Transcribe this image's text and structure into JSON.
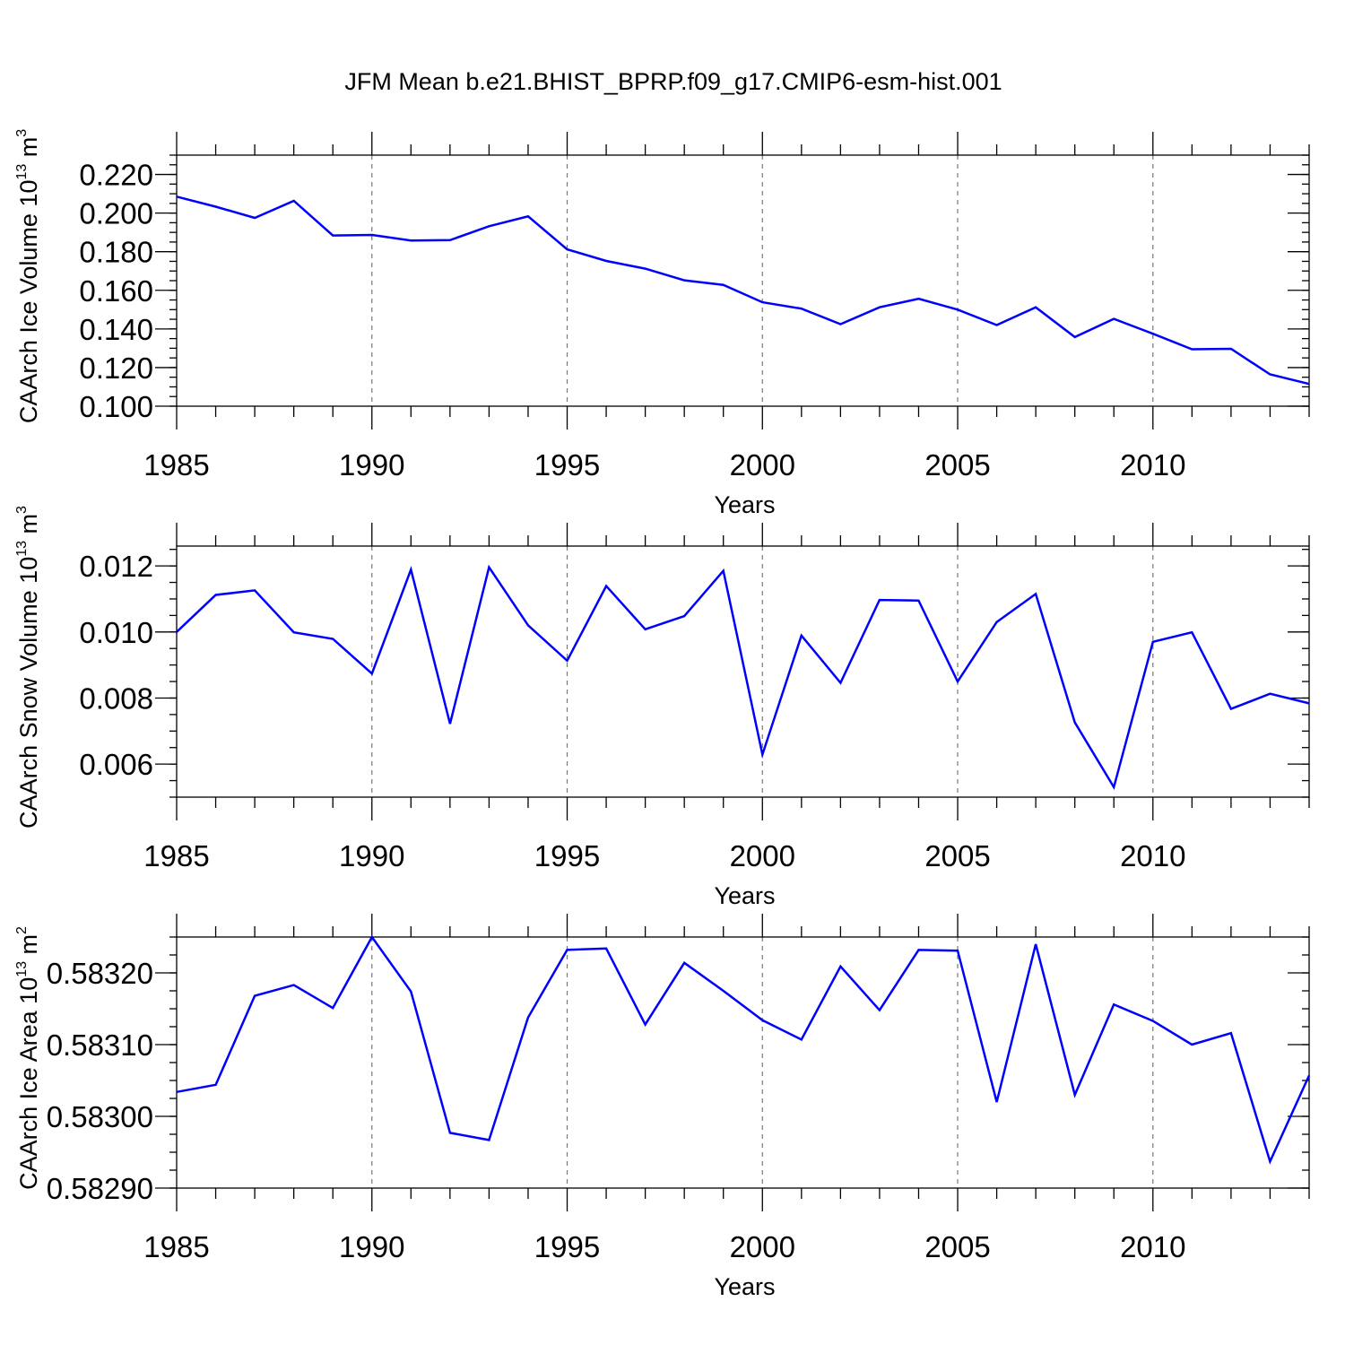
{
  "figure": {
    "title": "JFM Mean b.e21.BHIST_BPRP.f09_g17.CMIP6-esm-hist.001",
    "line_color": "#0000ff"
  },
  "chart_data": [
    {
      "type": "line",
      "title": "JFM Mean b.e21.BHIST_BPRP.f09_g17.CMIP6-esm-hist.001",
      "xlabel": "Years",
      "ylabel": {
        "text": "CAArch Ice Volume 10",
        "exp": "13",
        "unit": " m",
        "unit_exp": "3"
      },
      "xlim": [
        1985,
        2014
      ],
      "ylim": [
        0.1,
        0.23
      ],
      "xticks": [
        1985,
        1990,
        1995,
        2000,
        2005,
        2010
      ],
      "xtick_labels": [
        "1985",
        "1990",
        "1995",
        "2000",
        "2005",
        "2010"
      ],
      "yticks": [
        0.1,
        0.12,
        0.14,
        0.16,
        0.18,
        0.2,
        0.22
      ],
      "ytick_labels": [
        "0.100",
        "0.120",
        "0.140",
        "0.160",
        "0.180",
        "0.200",
        "0.220"
      ],
      "y_minor_step": 0.005,
      "grid_x": true,
      "x": [
        1985,
        1986,
        1987,
        1988,
        1989,
        1990,
        1991,
        1992,
        1993,
        1994,
        1995,
        1996,
        1997,
        1998,
        1999,
        2000,
        2001,
        2002,
        2003,
        2004,
        2005,
        2006,
        2007,
        2008,
        2009,
        2010,
        2011,
        2012,
        2013,
        2014
      ],
      "series": [
        {
          "name": "CAArch Ice Volume",
          "values": [
            0.2085,
            0.2033,
            0.1975,
            0.2063,
            0.1884,
            0.1887,
            0.1858,
            0.186,
            0.1932,
            0.1983,
            0.1812,
            0.1752,
            0.1712,
            0.1652,
            0.1628,
            0.1538,
            0.1505,
            0.1425,
            0.1512,
            0.1556,
            0.15,
            0.142,
            0.1512,
            0.1358,
            0.1452,
            0.1375,
            0.1295,
            0.1297,
            0.1165,
            0.1115
          ]
        }
      ]
    },
    {
      "type": "line",
      "xlabel": "Years",
      "ylabel": {
        "text": "CAArch Snow Volume 10",
        "exp": "13",
        "unit": " m",
        "unit_exp": "3"
      },
      "xlim": [
        1985,
        2014
      ],
      "ylim": [
        0.005,
        0.0126
      ],
      "xticks": [
        1985,
        1990,
        1995,
        2000,
        2005,
        2010
      ],
      "xtick_labels": [
        "1985",
        "1990",
        "1995",
        "2000",
        "2005",
        "2010"
      ],
      "yticks": [
        0.006,
        0.008,
        0.01,
        0.012
      ],
      "ytick_labels": [
        "0.006",
        "0.008",
        "0.010",
        "0.012"
      ],
      "y_minor_step": 0.0005,
      "grid_x": true,
      "x": [
        1985,
        1986,
        1987,
        1988,
        1989,
        1990,
        1991,
        1992,
        1993,
        1994,
        1995,
        1996,
        1997,
        1998,
        1999,
        2000,
        2001,
        2002,
        2003,
        2004,
        2005,
        2006,
        2007,
        2008,
        2009,
        2010,
        2011,
        2012,
        2013,
        2014
      ],
      "series": [
        {
          "name": "CAArch Snow Volume",
          "values": [
            0.01,
            0.01112,
            0.01126,
            0.00999,
            0.00979,
            0.00874,
            0.01189,
            0.00722,
            0.01196,
            0.0102,
            0.00913,
            0.01139,
            0.01008,
            0.01048,
            0.01185,
            0.00629,
            0.00989,
            0.00846,
            0.01097,
            0.01095,
            0.0085,
            0.0103,
            0.01115,
            0.00726,
            0.0053,
            0.0097,
            0.00999,
            0.00767,
            0.00813,
            0.00784
          ]
        }
      ]
    },
    {
      "type": "line",
      "xlabel": "Years",
      "ylabel": {
        "text": "CAArch Ice Area 10",
        "exp": "13",
        "unit": " m",
        "unit_exp": "2"
      },
      "xlim": [
        1985,
        2014
      ],
      "ylim": [
        0.5829,
        0.58325
      ],
      "xticks": [
        1985,
        1990,
        1995,
        2000,
        2005,
        2010
      ],
      "xtick_labels": [
        "1985",
        "1990",
        "1995",
        "2000",
        "2005",
        "2010"
      ],
      "yticks": [
        0.5829,
        0.583,
        0.5831,
        0.5832
      ],
      "ytick_labels": [
        "0.58290",
        "0.58300",
        "0.58310",
        "0.58320"
      ],
      "y_minor_step": 2.5e-05,
      "grid_x": true,
      "x": [
        1985,
        1986,
        1987,
        1988,
        1989,
        1990,
        1991,
        1992,
        1993,
        1994,
        1995,
        1996,
        1997,
        1998,
        1999,
        2000,
        2001,
        2002,
        2003,
        2004,
        2005,
        2006,
        2007,
        2008,
        2009,
        2010,
        2011,
        2012,
        2013,
        2014
      ],
      "series": [
        {
          "name": "CAArch Ice Area",
          "values": [
            0.583034,
            0.583044,
            0.583168,
            0.583183,
            0.583151,
            0.58325,
            0.583174,
            0.582977,
            0.582967,
            0.583138,
            0.583232,
            0.583234,
            0.583128,
            0.583214,
            0.583175,
            0.583134,
            0.583107,
            0.583209,
            0.583148,
            0.583232,
            0.583231,
            0.58302,
            0.58324,
            0.58303,
            0.583156,
            0.583133,
            0.5831,
            0.583116,
            0.582937,
            0.583057
          ]
        }
      ]
    }
  ]
}
